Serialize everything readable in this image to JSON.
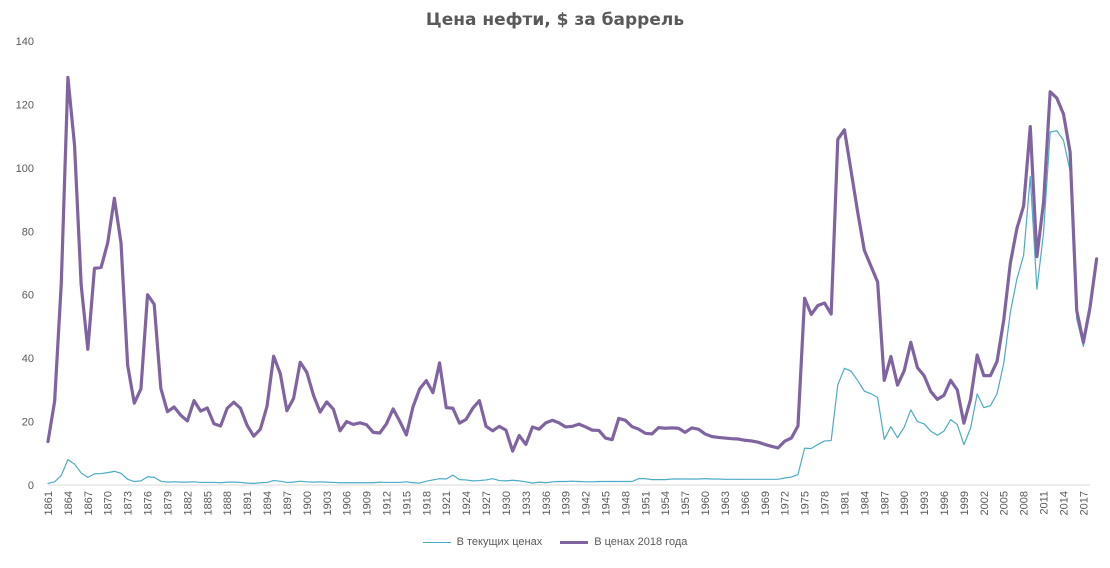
{
  "chart_data": {
    "type": "line",
    "title": "Цена нефти, $ за баррель",
    "xlabel": "",
    "ylabel": "",
    "ylim": [
      0,
      140
    ],
    "yticks": [
      0,
      20,
      40,
      60,
      80,
      100,
      120,
      140
    ],
    "x_start": 1861,
    "x_end": 2018,
    "xtick_labels": [
      "1861",
      "1864",
      "1867",
      "1870",
      "1873",
      "1876",
      "1879",
      "1882",
      "1885",
      "1888",
      "1891",
      "1894",
      "1897",
      "1900",
      "1903",
      "1906",
      "1909",
      "1912",
      "1915",
      "1918",
      "1921",
      "1924",
      "1927",
      "1930",
      "1933",
      "1936",
      "1939",
      "1942",
      "1945",
      "1948",
      "1951",
      "1954",
      "1957",
      "1960",
      "1963",
      "1966",
      "1969",
      "1972",
      "1975",
      "1978",
      "1981",
      "1984",
      "1987",
      "1990",
      "1993",
      "1996",
      "1999",
      "2002",
      "2005",
      "2008",
      "2011",
      "2014",
      "2017"
    ],
    "grid": false,
    "legend_position": "bottom",
    "series": [
      {
        "name": "В текущих ценах",
        "color": "#4bacc6",
        "values": [
          0.5,
          1.0,
          3.0,
          8.0,
          6.6,
          3.8,
          2.4,
          3.5,
          3.6,
          3.9,
          4.3,
          3.7,
          1.8,
          1.1,
          1.3,
          2.6,
          2.4,
          1.2,
          0.9,
          1.0,
          0.9,
          0.9,
          1.0,
          0.8,
          0.8,
          0.8,
          0.7,
          0.9,
          0.9,
          0.8,
          0.6,
          0.5,
          0.7,
          0.8,
          1.4,
          1.2,
          0.8,
          0.9,
          1.2,
          1.0,
          0.9,
          1.0,
          0.9,
          0.8,
          0.7,
          0.7,
          0.7,
          0.7,
          0.7,
          0.7,
          0.9,
          0.8,
          0.8,
          0.8,
          1.0,
          0.7,
          0.6,
          1.2,
          1.6,
          2.0,
          1.9,
          3.1,
          1.7,
          1.6,
          1.3,
          1.4,
          1.6,
          2.0,
          1.4,
          1.3,
          1.5,
          1.3,
          1.0,
          0.6,
          0.9,
          0.7,
          1.0,
          1.1,
          1.1,
          1.2,
          1.1,
          1.0,
          1.0,
          1.1,
          1.1,
          1.1,
          1.1,
          1.1,
          1.1,
          2.0,
          2.0,
          1.7,
          1.7,
          1.7,
          1.9,
          1.9,
          1.9,
          1.9,
          1.9,
          2.0,
          1.9,
          1.9,
          1.8,
          1.8,
          1.8,
          1.8,
          1.8,
          1.8,
          1.8,
          1.8,
          1.8,
          2.2,
          2.5,
          3.3,
          11.6,
          11.5,
          12.8,
          13.9,
          14.0,
          31.6,
          36.8,
          35.9,
          32.9,
          29.6,
          28.8,
          27.6,
          14.4,
          18.4,
          14.9,
          18.2,
          23.7,
          20.0,
          19.3,
          17.0,
          15.7,
          17.0,
          20.6,
          19.1,
          12.7,
          17.9,
          28.7,
          24.4,
          25.0,
          28.8,
          38.3,
          54.5,
          65.1,
          72.4,
          97.3,
          61.7,
          79.5,
          111.3,
          111.7,
          108.7,
          99.0,
          52.4,
          43.7,
          54.2,
          71.3
        ],
        "show_label": true
      },
      {
        "name": "В ценах 2018 года",
        "color": "#8064a2",
        "values": [
          13.7,
          26.4,
          63.5,
          128.5,
          107.1,
          63.0,
          42.8,
          68.3,
          68.6,
          76.4,
          90.4,
          76.3,
          37.8,
          25.8,
          30.3,
          60.0,
          57.0,
          30.5,
          23.1,
          24.6,
          22.0,
          20.2,
          26.6,
          23.3,
          24.3,
          19.3,
          18.6,
          24.2,
          26.1,
          24.2,
          18.8,
          15.4,
          17.6,
          24.8,
          40.6,
          35.1,
          23.4,
          27.3,
          38.7,
          35.5,
          28.3,
          23.0,
          26.2,
          23.9,
          17.1,
          20.0,
          19.1,
          19.6,
          19.0,
          16.6,
          16.4,
          19.3,
          24.0,
          20.1,
          15.8,
          24.7,
          30.3,
          32.9,
          29.1,
          38.5,
          24.4,
          24.2,
          19.5,
          20.7,
          24.2,
          26.6,
          18.5,
          17.1,
          18.5,
          17.3,
          10.7,
          15.6,
          12.8,
          18.3,
          17.6,
          19.6,
          20.4,
          19.6,
          18.3,
          18.5,
          19.2,
          18.3,
          17.3,
          17.2,
          14.8,
          14.3,
          21.0,
          20.4,
          18.4,
          17.6,
          16.3,
          16.1,
          18.1,
          17.9,
          18.0,
          17.9,
          16.6,
          18.0,
          17.6,
          16.1,
          15.3,
          15.0,
          14.8,
          14.6,
          14.5,
          14.1,
          13.9,
          13.5,
          12.8,
          12.2,
          11.7,
          13.8,
          14.8,
          18.6,
          58.9,
          53.8,
          56.6,
          57.4,
          53.9,
          109.0,
          112.0,
          99.0,
          86.0,
          74.0,
          69.0,
          64.0,
          33.0,
          40.5,
          31.5,
          36.0,
          45.0,
          37.0,
          34.5,
          29.5,
          27.0,
          28.3,
          33.0,
          30.0,
          19.5,
          27.0,
          41.0,
          34.5,
          34.5,
          39.0,
          52.0,
          70.0,
          81.0,
          88.0,
          113.0,
          72.0,
          89.0,
          124.0,
          122.0,
          117.0,
          105.0,
          55.0,
          45.0,
          56.0,
          71.3
        ],
        "show_label": true
      }
    ]
  }
}
